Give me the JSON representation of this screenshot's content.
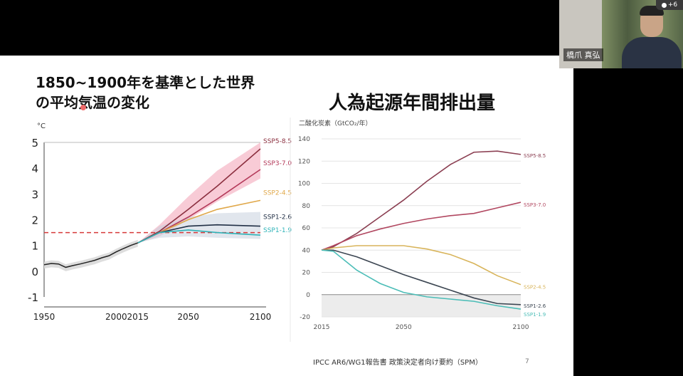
{
  "slide": {
    "left_title_line1": "1850~1900年を基準とした世界",
    "left_title_line2": "の平均気温の変化",
    "right_title": "人為起源年間排出量",
    "footer": "IPCC AR6/WG1報告書 政策決定者向け要約（SPM）",
    "page_number": "7"
  },
  "video": {
    "name": "橋爪 真弘",
    "participants_badge": "+6"
  },
  "chart_data": [
    {
      "type": "line",
      "title": "1850~1900年を基準とした世界の平均気温の変化",
      "ylabel": "°C",
      "xlim": [
        1950,
        2100
      ],
      "ylim": [
        -1,
        5
      ],
      "xticks": [
        "1950",
        "2000",
        "2015",
        "2050",
        "2100"
      ],
      "yticks": [
        "-1",
        "0",
        "1",
        "2",
        "3",
        "4",
        "5"
      ],
      "reference_line": {
        "value": 1.5,
        "style": "dashed",
        "color": "#d63a3a"
      },
      "historical": {
        "color": "#222222",
        "x": [
          1950,
          1955,
          1960,
          1965,
          1970,
          1975,
          1980,
          1985,
          1990,
          1995,
          2000,
          2005,
          2010,
          2015
        ],
        "y": [
          0.25,
          0.3,
          0.28,
          0.15,
          0.22,
          0.28,
          0.35,
          0.42,
          0.52,
          0.6,
          0.75,
          0.88,
          1.0,
          1.1
        ]
      },
      "series": [
        {
          "name": "SSP5-8.5",
          "color": "#8b2f3f",
          "x": [
            2015,
            2030,
            2050,
            2070,
            2100
          ],
          "y": [
            1.1,
            1.55,
            2.4,
            3.3,
            4.75
          ]
        },
        {
          "name": "SSP3-7.0",
          "color": "#b43a5a",
          "x": [
            2015,
            2030,
            2050,
            2070,
            2100
          ],
          "y": [
            1.1,
            1.5,
            2.1,
            2.8,
            3.95
          ]
        },
        {
          "name": "SSP2-4.5",
          "color": "#e0a84a",
          "x": [
            2015,
            2030,
            2050,
            2070,
            2100
          ],
          "y": [
            1.1,
            1.5,
            2.0,
            2.4,
            2.75
          ]
        },
        {
          "name": "SSP1-2.6",
          "color": "#223046",
          "x": [
            2015,
            2030,
            2050,
            2070,
            2100
          ],
          "y": [
            1.1,
            1.5,
            1.75,
            1.8,
            1.75
          ]
        },
        {
          "name": "SSP1-1.9",
          "color": "#2fb3b8",
          "x": [
            2015,
            2030,
            2050,
            2070,
            2100
          ],
          "y": [
            1.1,
            1.5,
            1.6,
            1.5,
            1.4
          ]
        }
      ],
      "ranges": [
        {
          "series": "SSP5-8.5",
          "color": "#f2a0b4",
          "x": [
            2015,
            2030,
            2050,
            2070,
            2100
          ],
          "low": [
            1.1,
            1.35,
            2.0,
            2.7,
            3.6
          ],
          "high": [
            1.1,
            1.8,
            2.9,
            3.9,
            5.0
          ]
        },
        {
          "series": "SSP1-2.6",
          "color": "#c8d2de",
          "x": [
            2015,
            2030,
            2050,
            2070,
            2100
          ],
          "low": [
            1.1,
            1.3,
            1.35,
            1.3,
            1.25
          ],
          "high": [
            1.1,
            1.75,
            2.1,
            2.25,
            2.3
          ]
        }
      ],
      "grid": false
    },
    {
      "type": "line",
      "title": "人為起源年間排出量",
      "ylabel": "二酸化炭素（GtCO₂/年）",
      "xlim": [
        2015,
        2100
      ],
      "ylim": [
        -20,
        140
      ],
      "xticks": [
        "2015",
        "2050",
        "2100"
      ],
      "yticks": [
        "-20",
        "0",
        "20",
        "40",
        "60",
        "80",
        "100",
        "120",
        "140"
      ],
      "negative_region": true,
      "grid": true,
      "series": [
        {
          "name": "SSP5-8.5",
          "color": "#8b3f52",
          "x": [
            2015,
            2020,
            2030,
            2040,
            2050,
            2060,
            2070,
            2080,
            2090,
            2100
          ],
          "y": [
            40,
            43,
            55,
            70,
            85,
            102,
            117,
            128,
            129,
            126
          ]
        },
        {
          "name": "SSP3-7.0",
          "color": "#b14760",
          "x": [
            2015,
            2020,
            2030,
            2040,
            2050,
            2060,
            2070,
            2080,
            2090,
            2100
          ],
          "y": [
            40,
            44,
            53,
            59,
            64,
            68,
            71,
            73,
            78,
            83
          ]
        },
        {
          "name": "SSP2-4.5",
          "color": "#d8b45a",
          "x": [
            2015,
            2020,
            2030,
            2040,
            2050,
            2060,
            2070,
            2080,
            2090,
            2100
          ],
          "y": [
            40,
            42,
            44,
            44,
            44,
            41,
            36,
            28,
            17,
            9
          ]
        },
        {
          "name": "SSP1-2.6",
          "color": "#3c4652",
          "x": [
            2015,
            2020,
            2030,
            2040,
            2050,
            2060,
            2070,
            2080,
            2090,
            2100
          ],
          "y": [
            40,
            40,
            34,
            26,
            18,
            11,
            4,
            -3,
            -8,
            -9
          ]
        },
        {
          "name": "SSP1-1.9",
          "color": "#4bbdb7",
          "x": [
            2015,
            2020,
            2030,
            2040,
            2050,
            2060,
            2070,
            2080,
            2090,
            2100
          ],
          "y": [
            40,
            39,
            22,
            10,
            2,
            -2,
            -4,
            -6,
            -10,
            -13
          ]
        }
      ]
    }
  ]
}
